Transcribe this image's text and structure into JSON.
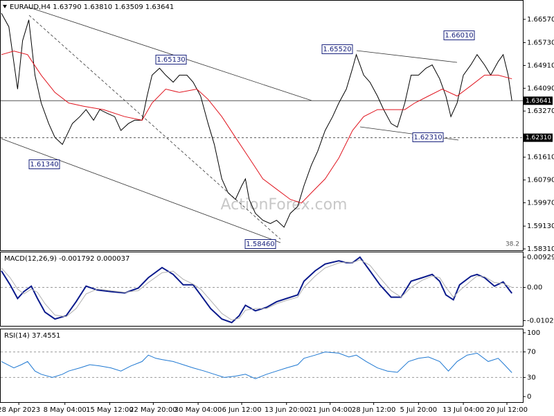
{
  "chart_data": [
    {
      "type": "line",
      "title": "EURAUD,H4  1.63790 1.63810 1.63509 1.63641",
      "watermark": "ActionForex.com",
      "xlim": [
        0,
        416
      ],
      "ylim": [
        1.5826,
        1.6724
      ],
      "yticks": [
        {
          "value": 1.6657,
          "label": "1.66570"
        },
        {
          "value": 1.6573,
          "label": "1.65730"
        },
        {
          "value": 1.6491,
          "label": "1.64910"
        },
        {
          "value": 1.6409,
          "label": "1.64090"
        },
        {
          "value": 1.6327,
          "label": "1.63270"
        },
        {
          "value": 1.6161,
          "label": "1.61610"
        },
        {
          "value": 1.6079,
          "label": "1.60790"
        },
        {
          "value": 1.5997,
          "label": "1.59970"
        },
        {
          "value": 1.5913,
          "label": "1.59130"
        },
        {
          "value": 1.5831,
          "label": "1.58310"
        }
      ],
      "hlines": [
        {
          "value": 1.63641,
          "label": "1.63641",
          "style": "solid"
        },
        {
          "value": 1.6231,
          "label": "1.62310",
          "style": "dashed"
        }
      ],
      "annotations": [
        "1.61340",
        "1.65130",
        "1.58460",
        "1.65520",
        "1.66010",
        "1.62310",
        "38.2"
      ],
      "series": [
        {
          "color": "#000000",
          "x": [
            0,
            6,
            13,
            17,
            22,
            27,
            32,
            38,
            43,
            49,
            57,
            63,
            68,
            74,
            79,
            85,
            91,
            96,
            102,
            107,
            113,
            117,
            121,
            127,
            132,
            138,
            143,
            149,
            154,
            160,
            166,
            171,
            177,
            182,
            188,
            193,
            196,
            199,
            204,
            210,
            216,
            221,
            227,
            232,
            238,
            243,
            249,
            254,
            260,
            266,
            271,
            277,
            282,
            285,
            291,
            296,
            302,
            307,
            313,
            318,
            324,
            329,
            335,
            341,
            346,
            352,
            357,
            361,
            366,
            371,
            377,
            382,
            388,
            393,
            399,
            403,
            407,
            410
          ],
          "values": [
            1.6679,
            1.663,
            1.6406,
            1.658,
            1.6655,
            1.6456,
            1.6356,
            1.6282,
            1.6232,
            1.6207,
            1.6282,
            1.6307,
            1.6332,
            1.6294,
            1.6332,
            1.6319,
            1.6307,
            1.6257,
            1.6282,
            1.6294,
            1.6294,
            1.6381,
            1.6456,
            1.6481,
            1.6456,
            1.6431,
            1.6456,
            1.6456,
            1.6431,
            1.6381,
            1.6282,
            1.6207,
            1.6083,
            1.6033,
            1.6009,
            1.6058,
            1.6083,
            1.6009,
            1.5959,
            1.5934,
            1.5922,
            1.5934,
            1.5909,
            1.5959,
            1.5984,
            1.6058,
            1.6133,
            1.6182,
            1.6257,
            1.6307,
            1.6356,
            1.6406,
            1.6481,
            1.653,
            1.6456,
            1.6431,
            1.6381,
            1.6332,
            1.6282,
            1.6269,
            1.6356,
            1.6456,
            1.6456,
            1.6481,
            1.6493,
            1.6443,
            1.6381,
            1.6307,
            1.6356,
            1.6456,
            1.6493,
            1.653,
            1.6493,
            1.6456,
            1.6505,
            1.653,
            1.6456,
            1.63641
          ]
        },
        {
          "color": "#e0141e",
          "x": [
            0,
            10,
            21,
            32,
            43,
            54,
            66,
            82,
            99,
            113,
            121,
            132,
            143,
            157,
            166,
            177,
            188,
            199,
            210,
            221,
            232,
            241,
            249,
            260,
            271,
            282,
            291,
            302,
            313,
            324,
            332,
            343,
            354,
            366,
            377,
            388,
            399,
            410
          ],
          "values": [
            1.653,
            1.6543,
            1.653,
            1.6456,
            1.6394,
            1.6356,
            1.6344,
            1.6332,
            1.6307,
            1.6294,
            1.6356,
            1.6406,
            1.6394,
            1.6406,
            1.6369,
            1.6307,
            1.6232,
            1.6158,
            1.6083,
            1.6046,
            1.6009,
            1.5996,
            1.6033,
            1.6083,
            1.6158,
            1.6257,
            1.6307,
            1.6332,
            1.6332,
            1.6332,
            1.6356,
            1.6381,
            1.6406,
            1.6381,
            1.6418,
            1.6456,
            1.6456,
            1.6443
          ]
        }
      ]
    },
    {
      "type": "line",
      "title": "MACD(12,26,9) -0.001792 0.000037",
      "xlim": [
        0,
        416
      ],
      "ylim": [
        -0.01182,
        0.01077
      ],
      "yticks": [
        {
          "value": 0.009291,
          "label": "0.009291"
        },
        {
          "value": 0,
          "label": "0.00"
        },
        {
          "value": -0.010211,
          "label": "-0.010211"
        }
      ],
      "levels": [
        0
      ],
      "series": [
        {
          "color": "#0a1a8c",
          "x": [
            0,
            7,
            13,
            18,
            24,
            29,
            35,
            43,
            52,
            60,
            68,
            77,
            88,
            99,
            110,
            118,
            129,
            138,
            146,
            154,
            160,
            168,
            177,
            185,
            191,
            196,
            204,
            213,
            221,
            229,
            238,
            243,
            252,
            260,
            271,
            277,
            282,
            288,
            296,
            304,
            313,
            321,
            329,
            338,
            346,
            352,
            357,
            363,
            368,
            377,
            382,
            388,
            396,
            403,
            410
          ],
          "values": [
            0.0051,
            0.0008,
            -0.0034,
            -0.0013,
            0.0004,
            -0.0034,
            -0.0076,
            -0.0097,
            -0.0087,
            -0.0044,
            0.0004,
            -0.0008,
            -0.0013,
            -0.0017,
            -0.0002,
            0.003,
            0.0061,
            0.004,
            0.0008,
            0.0008,
            -0.0023,
            -0.0065,
            -0.0097,
            -0.0108,
            -0.0087,
            -0.0055,
            -0.0072,
            -0.0061,
            -0.0044,
            -0.0034,
            -0.0023,
            0.0019,
            0.0051,
            0.0072,
            0.0082,
            0.0076,
            0.0076,
            0.0093,
            0.0051,
            0.0008,
            -0.003,
            -0.003,
            0.0019,
            0.003,
            0.004,
            0.0019,
            -0.0023,
            -0.0038,
            0.0008,
            0.0034,
            0.004,
            0.003,
            0.0004,
            0.0017,
            -0.0018
          ]
        },
        {
          "color": "#b0b0b0",
          "x": [
            0,
            7,
            13,
            18,
            24,
            29,
            35,
            43,
            52,
            60,
            68,
            77,
            88,
            99,
            110,
            118,
            129,
            138,
            146,
            154,
            160,
            168,
            177,
            185,
            191,
            196,
            204,
            213,
            221,
            229,
            238,
            243,
            252,
            260,
            271,
            277,
            282,
            288,
            296,
            304,
            313,
            321,
            329,
            338,
            346,
            352,
            357,
            363,
            368,
            377,
            382,
            388,
            396,
            403,
            410
          ],
          "values": [
            0.006,
            0.003,
            -0.0005,
            -0.002,
            -0.0005,
            -0.0015,
            -0.005,
            -0.0085,
            -0.009,
            -0.0065,
            -0.002,
            -0.0005,
            -0.001,
            -0.0015,
            -0.001,
            0.0015,
            0.0045,
            0.005,
            0.0025,
            0.001,
            -0.0005,
            -0.004,
            -0.008,
            -0.01,
            -0.0095,
            -0.007,
            -0.0065,
            -0.0065,
            -0.005,
            -0.004,
            -0.003,
            0.0,
            0.0035,
            0.006,
            0.0075,
            0.0078,
            0.0076,
            0.0085,
            0.0068,
            0.003,
            -0.001,
            -0.003,
            0.0,
            0.0022,
            0.0035,
            0.003,
            0.0,
            -0.003,
            -0.001,
            0.002,
            0.0035,
            0.0033,
            0.0015,
            0.0012,
            3.7e-05
          ]
        }
      ]
    },
    {
      "type": "line",
      "title": "RSI(14) 37.4551",
      "xlim": [
        0,
        416
      ],
      "ylim": [
        -8.7,
        105.4
      ],
      "yticks": [
        100,
        70,
        30,
        0
      ],
      "levels": [
        70,
        30
      ],
      "xticks": [
        {
          "value": 14,
          "label": "28 Apr 2023"
        },
        {
          "value": 51,
          "label": "8 May 04:00"
        },
        {
          "value": 87,
          "label": "15 May 12:00"
        },
        {
          "value": 122,
          "label": "22 May 20:00"
        },
        {
          "value": 158,
          "label": "30 May 04:00"
        },
        {
          "value": 193,
          "label": "6 Jun 12:00"
        },
        {
          "value": 229,
          "label": "13 Jun 20:00"
        },
        {
          "value": 264,
          "label": "21 Jun 04:00"
        },
        {
          "value": 299,
          "label": "28 Jun 12:00"
        },
        {
          "value": 335,
          "label": "5 Jul 20:00"
        },
        {
          "value": 371,
          "label": "13 Jul 04:00"
        },
        {
          "value": 406,
          "label": "20 Jul 12:00"
        }
      ],
      "series": [
        {
          "color": "#1e78d2",
          "x": [
            0,
            10,
            16,
            21,
            27,
            32,
            41,
            49,
            54,
            63,
            71,
            79,
            88,
            96,
            104,
            113,
            118,
            124,
            129,
            138,
            146,
            154,
            163,
            171,
            179,
            188,
            196,
            204,
            213,
            221,
            229,
            238,
            243,
            252,
            260,
            271,
            279,
            285,
            293,
            302,
            310,
            318,
            327,
            335,
            343,
            352,
            359,
            366,
            374,
            382,
            391,
            399,
            404,
            410
          ],
          "values": [
            55,
            45,
            50,
            55,
            40,
            35,
            30,
            35,
            40,
            45,
            50,
            48,
            45,
            40,
            48,
            55,
            65,
            60,
            58,
            55,
            50,
            45,
            40,
            35,
            30,
            32,
            35,
            28,
            35,
            40,
            45,
            50,
            60,
            65,
            70,
            68,
            62,
            65,
            55,
            45,
            40,
            38,
            55,
            60,
            62,
            55,
            40,
            55,
            65,
            68,
            55,
            60,
            50,
            37.4551
          ]
        }
      ]
    }
  ]
}
